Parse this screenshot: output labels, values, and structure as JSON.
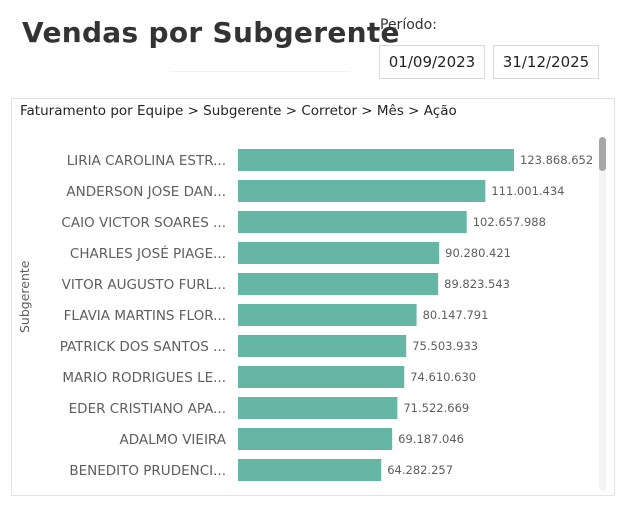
{
  "header": {
    "title": "Vendas por Subgerente",
    "period_label": "Período:",
    "date_start": "01/09/2023",
    "date_end": "31/12/2025"
  },
  "visual": {
    "breadcrumb": "Faturamento por Equipe > Subgerente > Corretor > Mês > Ação"
  },
  "chart_data": {
    "type": "bar",
    "orientation": "horizontal",
    "ylabel": "Subgerente",
    "bar_color": "#66b6a6",
    "categories": [
      "LIRIA CAROLINA ESTR...",
      "ANDERSON JOSE DAN...",
      "CAIO VICTOR SOARES ...",
      "CHARLES JOSÉ PIAGE...",
      "VITOR AUGUSTO FURL...",
      "FLAVIA MARTINS FLOR...",
      "PATRICK DOS SANTOS ...",
      "MARIO RODRIGUES LE...",
      "EDER CRISTIANO APA...",
      "ADALMO VIEIRA",
      "BENEDITO PRUDENCI..."
    ],
    "values": [
      123868652,
      111001434,
      102657988,
      90280421,
      89823543,
      80147791,
      75503933,
      74610630,
      71522669,
      69187046,
      64282257
    ],
    "value_labels": [
      "123.868.652",
      "111.001.434",
      "102.657.988",
      "90.280.421",
      "89.823.543",
      "80.147.791",
      "75.503.933",
      "74.610.630",
      "71.522.669",
      "69.187.046",
      "64.282.257"
    ],
    "xlim": [
      0,
      123868652
    ]
  }
}
